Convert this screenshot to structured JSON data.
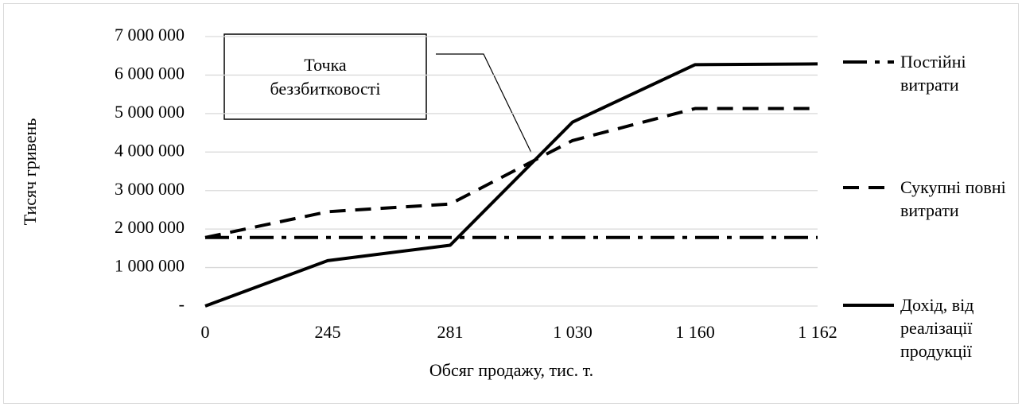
{
  "chart_data": {
    "type": "line",
    "x_label": "Обсяг продажу, тис. т.",
    "y_label": "Тисяч гривень",
    "annotation": "Точка беззбитковості",
    "categories": [
      "0",
      "245",
      "281",
      "1 030",
      "1 160",
      "1 162"
    ],
    "series": [
      {
        "name": "Постійні витрати",
        "color": "#000000",
        "line_style": "dash-dot",
        "values": [
          1780000,
          1780000,
          1780000,
          1780000,
          1780000,
          1780000
        ]
      },
      {
        "name": "Сукупні повні витрати",
        "color": "#000000",
        "line_style": "dashed",
        "values": [
          1780000,
          2450000,
          2650000,
          4300000,
          5130000,
          5130000
        ]
      },
      {
        "name": "Дохід, від реалізації продукції",
        "color": "#000000",
        "line_style": "solid",
        "values": [
          0,
          1180000,
          1580000,
          4780000,
          6270000,
          6290000
        ]
      }
    ],
    "ylim": [
      0,
      7000000
    ],
    "yticks": [
      {
        "value": 0,
        "label": "-"
      },
      {
        "value": 1000000,
        "label": "1 000 000"
      },
      {
        "value": 2000000,
        "label": "2 000 000"
      },
      {
        "value": 3000000,
        "label": "3 000 000"
      },
      {
        "value": 4000000,
        "label": "4 000 000"
      },
      {
        "value": 5000000,
        "label": "5 000 000"
      },
      {
        "value": 6000000,
        "label": "6 000 000"
      },
      {
        "value": 7000000,
        "label": "7 000 000"
      }
    ],
    "grid": true,
    "legend": "right"
  }
}
